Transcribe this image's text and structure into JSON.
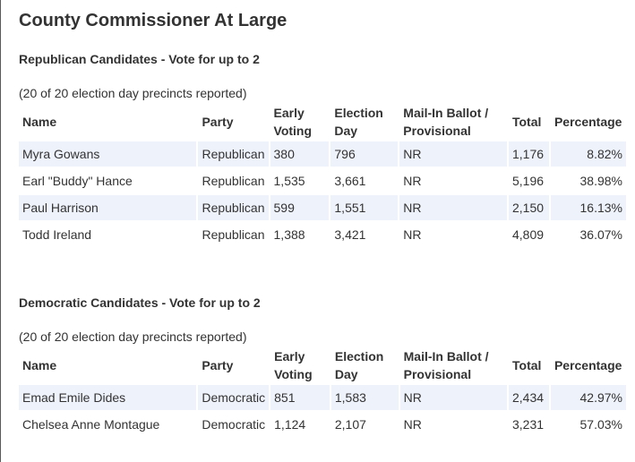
{
  "title": "County Commissioner At Large",
  "columns": {
    "name": "Name",
    "party": "Party",
    "early_1": "Early",
    "early_2": "Voting",
    "eday_1": "Election",
    "eday_2": "Day",
    "mail_1": "Mail-In Ballot /",
    "mail_2": "Provisional",
    "total": "Total",
    "percentage": "Percentage"
  },
  "republican": {
    "heading": "Republican Candidates - Vote for up to 2",
    "reported": "(20 of 20 election day precincts reported)",
    "rows": [
      {
        "name": "Myra Gowans",
        "party": "Republican",
        "early": "380",
        "eday": "796",
        "mail": "NR",
        "total": "1,176",
        "pct": "8.82%"
      },
      {
        "name": "Earl \"Buddy\" Hance",
        "party": "Republican",
        "early": "1,535",
        "eday": "3,661",
        "mail": "NR",
        "total": "5,196",
        "pct": "38.98%"
      },
      {
        "name": "Paul Harrison",
        "party": "Republican",
        "early": "599",
        "eday": "1,551",
        "mail": "NR",
        "total": "2,150",
        "pct": "16.13%"
      },
      {
        "name": "Todd Ireland",
        "party": "Republican",
        "early": "1,388",
        "eday": "3,421",
        "mail": "NR",
        "total": "4,809",
        "pct": "36.07%"
      }
    ]
  },
  "democratic": {
    "heading": "Democratic Candidates - Vote for up to 2",
    "reported": "(20 of 20 election day precincts reported)",
    "rows": [
      {
        "name": "Emad Emile Dides",
        "party": "Democratic",
        "early": "851",
        "eday": "1,583",
        "mail": "NR",
        "total": "2,434",
        "pct": "42.97%"
      },
      {
        "name": "Chelsea Anne Montague",
        "party": "Democratic",
        "early": "1,124",
        "eday": "2,107",
        "mail": "NR",
        "total": "3,231",
        "pct": "57.03%"
      }
    ]
  }
}
